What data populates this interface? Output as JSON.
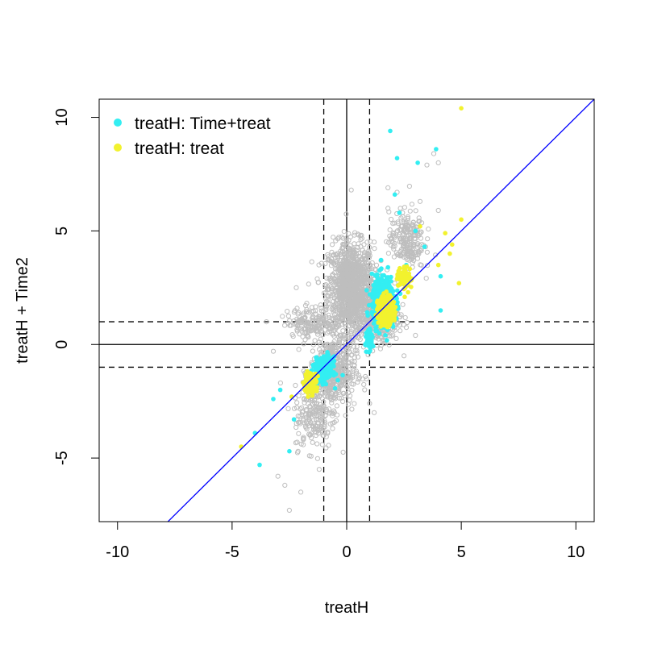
{
  "chart_data": {
    "type": "scatter",
    "title": "",
    "xlabel": "treatH",
    "ylabel": "treatH + Time2",
    "xlim": [
      -10.8,
      10.8
    ],
    "ylim": [
      -7.8,
      10.8
    ],
    "x_ticks": [
      -10,
      -5,
      0,
      5,
      10
    ],
    "y_ticks": [
      -5,
      0,
      5,
      10
    ],
    "x_tick_labels": [
      "-10",
      "-5",
      "0",
      "5",
      "10"
    ],
    "y_tick_labels": [
      "-5",
      "0",
      "5",
      "10"
    ],
    "grid": false,
    "legend_position": "top-left",
    "reference_lines": {
      "solid_vertical": [
        0
      ],
      "solid_horizontal": [
        0
      ],
      "dashed_vertical": [
        -1,
        1
      ],
      "dashed_horizontal": [
        -1,
        1
      ],
      "diagonal": {
        "slope": 1,
        "intercept": 0,
        "color": "#0000ff"
      }
    },
    "series": [
      {
        "name": "",
        "color": "#bebebe",
        "marker": "open-circle",
        "clusters": [
          {
            "center": [
              0.2,
              2.5
            ],
            "spread": [
              0.9,
              1.8
            ],
            "n": 1200
          },
          {
            "center": [
              -0.6,
              -1.2
            ],
            "spread": [
              0.9,
              1.4
            ],
            "n": 450
          },
          {
            "center": [
              -1.4,
              -3.2
            ],
            "spread": [
              0.8,
              1.3
            ],
            "n": 180
          },
          {
            "center": [
              1.4,
              1.2
            ],
            "spread": [
              0.8,
              1.0
            ],
            "n": 350
          },
          {
            "center": [
              2.6,
              4.6
            ],
            "spread": [
              0.7,
              1.2
            ],
            "n": 220
          },
          {
            "center": [
              -1.5,
              1.0
            ],
            "spread": [
              1.0,
              0.6
            ],
            "n": 160
          }
        ],
        "extreme_points": [
          [
            -2.5,
            -7.3
          ],
          [
            -2.0,
            -6.5
          ],
          [
            -3.0,
            -5.8
          ],
          [
            -2.7,
            -6.2
          ],
          [
            3.8,
            8.4
          ],
          [
            3.5,
            7.9
          ],
          [
            4.0,
            8.0
          ],
          [
            2.2,
            6.7
          ],
          [
            -3.5,
            1.0
          ],
          [
            3.2,
            6.3
          ],
          [
            -1.2,
            -5.5
          ],
          [
            0.2,
            6.8
          ],
          [
            1.2,
            -3.0
          ],
          [
            1.0,
            -2.6
          ],
          [
            2.5,
            -0.5
          ],
          [
            3.0,
            0.4
          ],
          [
            -3.2,
            -0.3
          ],
          [
            -2.2,
            2.5
          ],
          [
            4.0,
            5.9
          ],
          [
            1.8,
            6.9
          ]
        ]
      },
      {
        "name": "treatH: Time+treat",
        "color": "#33eef2",
        "marker": "filled-circle",
        "clusters": [
          {
            "center": [
              1.6,
              1.9
            ],
            "spread": [
              0.45,
              1.0
            ],
            "n": 480
          },
          {
            "center": [
              -1.0,
              -1.1
            ],
            "spread": [
              0.35,
              0.5
            ],
            "n": 260
          },
          {
            "center": [
              1.0,
              0.2
            ],
            "spread": [
              0.12,
              0.35
            ],
            "n": 90
          }
        ],
        "extreme_points": [
          [
            1.9,
            9.4
          ],
          [
            2.1,
            6.6
          ],
          [
            2.2,
            8.2
          ],
          [
            3.1,
            8.0
          ],
          [
            3.9,
            8.6
          ],
          [
            2.3,
            5.8
          ],
          [
            4.1,
            1.5
          ],
          [
            3.0,
            5.0
          ],
          [
            -3.8,
            -5.3
          ],
          [
            -4.0,
            -3.9
          ],
          [
            -3.2,
            -2.4
          ],
          [
            -2.5,
            -4.7
          ],
          [
            -2.3,
            -3.3
          ],
          [
            -2.9,
            -2.0
          ],
          [
            4.1,
            3.0
          ],
          [
            3.4,
            4.3
          ],
          [
            2.6,
            3.5
          ]
        ]
      },
      {
        "name": "treatH: treat",
        "color": "#f2f22e",
        "marker": "filled-circle",
        "clusters": [
          {
            "center": [
              1.7,
              1.5
            ],
            "spread": [
              0.3,
              0.55
            ],
            "n": 360
          },
          {
            "center": [
              -1.6,
              -1.7
            ],
            "spread": [
              0.25,
              0.4
            ],
            "n": 110
          },
          {
            "center": [
              2.5,
              2.9
            ],
            "spread": [
              0.3,
              0.5
            ],
            "n": 60
          }
        ],
        "extreme_points": [
          [
            5.0,
            10.4
          ],
          [
            5.0,
            5.5
          ],
          [
            4.9,
            2.7
          ],
          [
            4.5,
            4.0
          ],
          [
            4.3,
            4.9
          ],
          [
            -4.6,
            -4.5
          ],
          [
            3.2,
            5.2
          ],
          [
            4.0,
            3.5
          ],
          [
            -2.4,
            -2.3
          ],
          [
            4.6,
            4.4
          ]
        ]
      }
    ]
  }
}
